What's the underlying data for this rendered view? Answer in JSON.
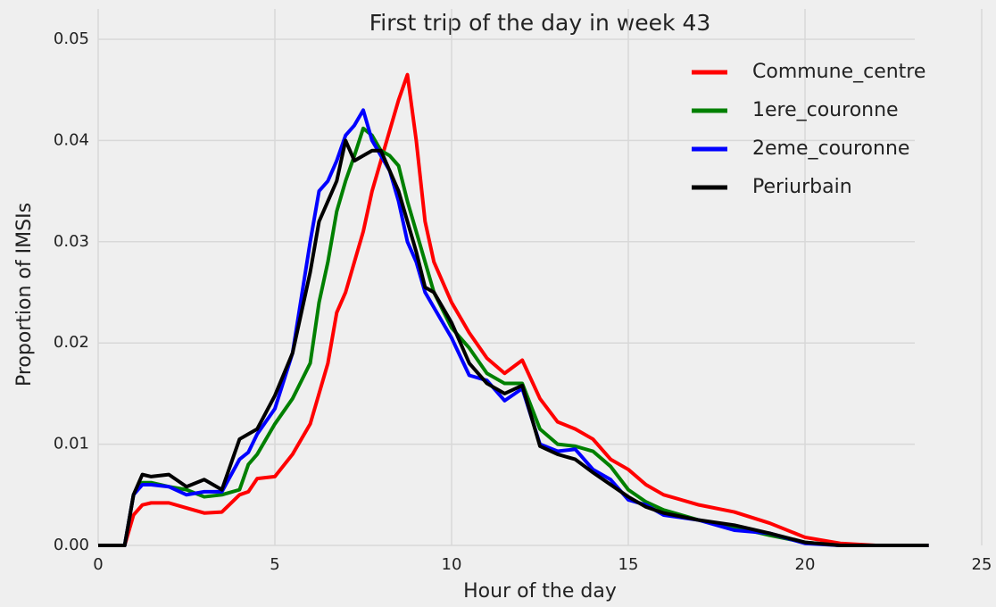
{
  "chart_data": {
    "type": "line",
    "title": "First trip of the day in week 43",
    "x_label": "Hour of the day",
    "y_label": "Proportion of IMSIs",
    "x": [
      0,
      0.75,
      1,
      1.25,
      1.5,
      2,
      2.5,
      3,
      3.5,
      4,
      4.25,
      4.5,
      5,
      5.5,
      6,
      6.25,
      6.5,
      6.75,
      7,
      7.25,
      7.5,
      7.75,
      8,
      8.25,
      8.5,
      8.75,
      9,
      9.25,
      9.5,
      10,
      10.5,
      11,
      11.5,
      12,
      12.5,
      13,
      13.5,
      14,
      14.5,
      15,
      15.5,
      16,
      17,
      18,
      19,
      20,
      21,
      22,
      23.5
    ],
    "series": [
      {
        "name": "Commune_centre",
        "color": "#ff0000",
        "values": [
          0,
          0,
          0.003,
          0.004,
          0.0042,
          0.0042,
          0.0037,
          0.0032,
          0.0033,
          0.005,
          0.0053,
          0.0066,
          0.0068,
          0.009,
          0.012,
          0.015,
          0.018,
          0.023,
          0.025,
          0.028,
          0.031,
          0.035,
          0.038,
          0.041,
          0.044,
          0.0465,
          0.04,
          0.032,
          0.028,
          0.024,
          0.021,
          0.0185,
          0.017,
          0.0183,
          0.0145,
          0.0122,
          0.0115,
          0.0105,
          0.0085,
          0.0075,
          0.006,
          0.005,
          0.004,
          0.0033,
          0.0022,
          0.0008,
          0.0002,
          0,
          0
        ]
      },
      {
        "name": "1ere_couronne",
        "color": "#008000",
        "values": [
          0,
          0,
          0.005,
          0.0062,
          0.0062,
          0.0058,
          0.0055,
          0.0048,
          0.005,
          0.0055,
          0.008,
          0.009,
          0.012,
          0.0145,
          0.018,
          0.024,
          0.028,
          0.033,
          0.036,
          0.0385,
          0.0412,
          0.0405,
          0.039,
          0.0385,
          0.0375,
          0.034,
          0.031,
          0.028,
          0.025,
          0.0215,
          0.0195,
          0.017,
          0.016,
          0.016,
          0.0115,
          0.01,
          0.0098,
          0.0093,
          0.0078,
          0.0055,
          0.0043,
          0.0035,
          0.0025,
          0.0018,
          0.001,
          0.0003,
          0,
          0,
          0
        ]
      },
      {
        "name": "2eme_couronne",
        "color": "#0000ff",
        "values": [
          0,
          0,
          0.005,
          0.006,
          0.006,
          0.0058,
          0.005,
          0.0053,
          0.0053,
          0.0085,
          0.0092,
          0.011,
          0.0135,
          0.019,
          0.03,
          0.035,
          0.036,
          0.038,
          0.0405,
          0.0415,
          0.043,
          0.04,
          0.0385,
          0.037,
          0.034,
          0.03,
          0.028,
          0.025,
          0.0235,
          0.0205,
          0.0168,
          0.0163,
          0.0143,
          0.0155,
          0.01,
          0.0093,
          0.0095,
          0.0075,
          0.0065,
          0.0045,
          0.004,
          0.003,
          0.0025,
          0.0015,
          0.0012,
          0.0002,
          0,
          0,
          0
        ]
      },
      {
        "name": "Periurbain",
        "color": "#000000",
        "values": [
          0,
          0,
          0.005,
          0.007,
          0.0068,
          0.007,
          0.0058,
          0.0065,
          0.0055,
          0.0105,
          0.011,
          0.0115,
          0.0148,
          0.019,
          0.027,
          0.032,
          0.034,
          0.036,
          0.04,
          0.038,
          0.0385,
          0.039,
          0.039,
          0.037,
          0.035,
          0.032,
          0.029,
          0.0255,
          0.025,
          0.022,
          0.018,
          0.016,
          0.015,
          0.0158,
          0.0098,
          0.009,
          0.0085,
          0.0072,
          0.006,
          0.0048,
          0.0038,
          0.0032,
          0.0025,
          0.002,
          0.0012,
          0.0003,
          0,
          0,
          0
        ]
      }
    ],
    "xlim": [
      0,
      25
    ],
    "xticks": [
      0,
      5,
      10,
      15,
      20,
      25
    ],
    "ylim": [
      0,
      0.05
    ],
    "yticks": [
      {
        "value": 0,
        "label": "0.00"
      },
      0.01,
      0.02,
      0.03,
      0.04,
      0.05
    ],
    "grid": true,
    "legend": "upper right"
  }
}
